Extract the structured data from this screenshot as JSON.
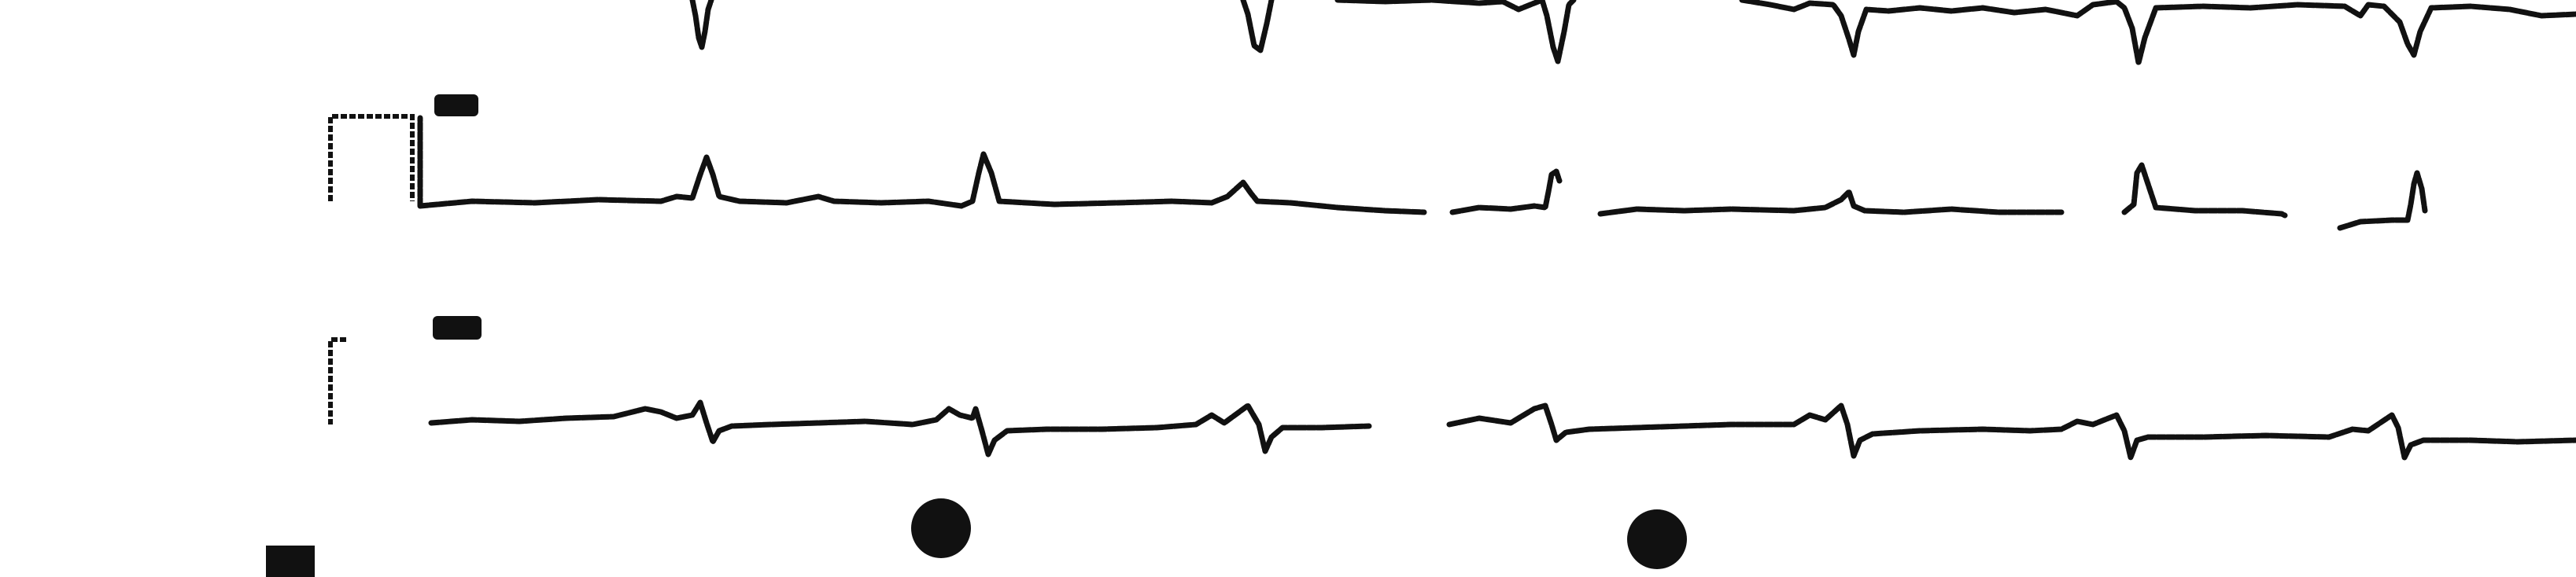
{
  "ecg_strip": {
    "ink_color": "#111111",
    "paper_color": "#ffffff",
    "leads": [
      {
        "id": "top",
        "label": ""
      },
      {
        "id": "aVL",
        "label": ""
      },
      {
        "id": "aVF",
        "label": ""
      }
    ],
    "markers": [
      {
        "name": "punch-hole-1",
        "label": ""
      },
      {
        "name": "punch-hole-2",
        "label": ""
      },
      {
        "name": "corner-mark",
        "label": ""
      }
    ]
  }
}
